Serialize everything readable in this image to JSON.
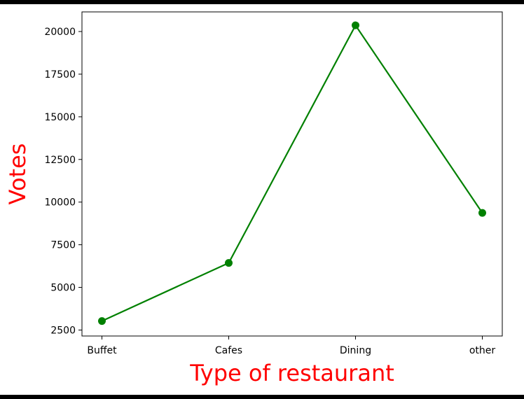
{
  "chart_data": {
    "type": "line",
    "categories": [
      "Buffet",
      "Cafes",
      "Dining",
      "other"
    ],
    "values": [
      3028,
      6434,
      20363,
      9367
    ],
    "xlabel": "Type of restaurant",
    "ylabel": "Votes",
    "ylim": [
      2150,
      21150
    ],
    "yticks": [
      2500,
      5000,
      7500,
      10000,
      12500,
      15000,
      17500,
      20000
    ],
    "ytick_labels": [
      "2500",
      "5000",
      "7500",
      "10000",
      "12500",
      "15000",
      "17500",
      "20000"
    ],
    "grid": false,
    "line_color": "#008000",
    "marker": "circle",
    "label_color": "#ff0000"
  }
}
